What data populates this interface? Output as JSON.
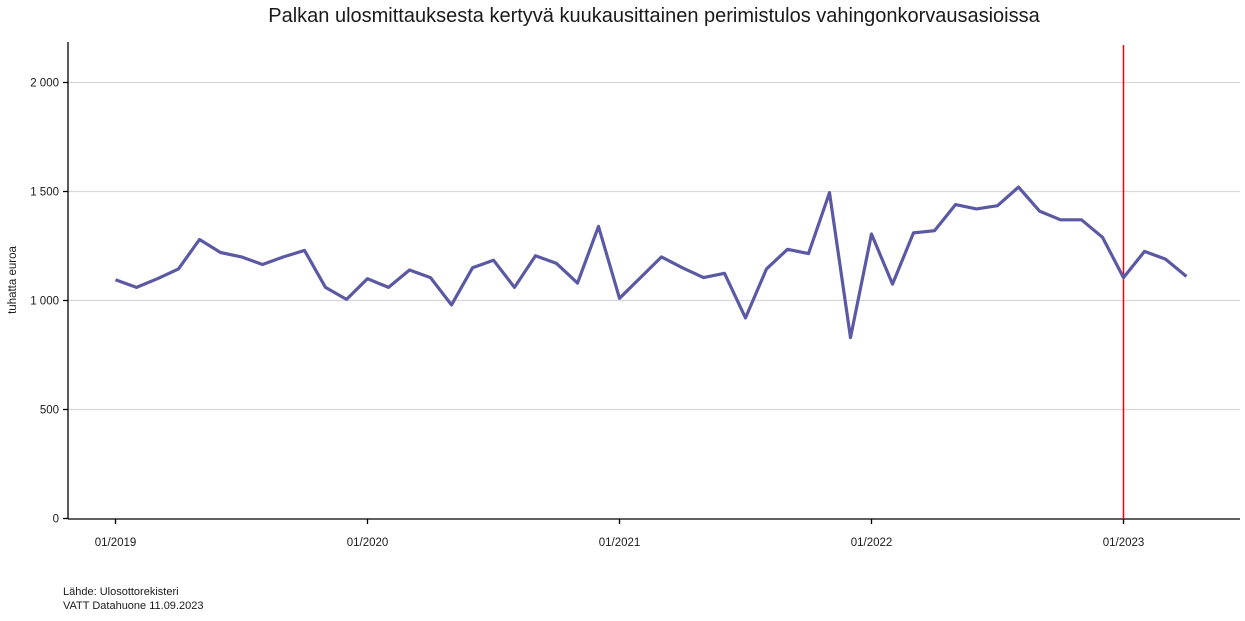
{
  "source": {
    "line1": "Lähde: Ulosottorekisteri",
    "line2": "VATT Datahuone 11.09.2023"
  },
  "chart_data": {
    "type": "line",
    "title": "Palkan ulosmittauksesta kertyvä kuukausittainen perimistulos vahingonkorvausasioissa",
    "xlabel": "",
    "ylabel": "tuhatta euroa",
    "ylim": [
      0,
      2150
    ],
    "yticks": [
      0,
      500,
      1000,
      1500,
      2000
    ],
    "ytick_labels": [
      "0",
      "500",
      "1 000",
      "1 500",
      "2 000"
    ],
    "xtick_labels": [
      "01/2019",
      "01/2020",
      "01/2021",
      "01/2022",
      "01/2023"
    ],
    "xtick_month_indices": [
      0,
      12,
      24,
      36,
      48
    ],
    "grid": "horizontal",
    "legend": "none",
    "line_color": "#5B59A4",
    "gridline_color": "#d8d8d8",
    "axis_color": "#000000",
    "vline": {
      "x_label": "01/2023",
      "month_index": 48,
      "color": "#FF0000"
    },
    "x": [
      "01/2019",
      "02/2019",
      "03/2019",
      "04/2019",
      "05/2019",
      "06/2019",
      "07/2019",
      "08/2019",
      "09/2019",
      "10/2019",
      "11/2019",
      "12/2019",
      "01/2020",
      "02/2020",
      "03/2020",
      "04/2020",
      "05/2020",
      "06/2020",
      "07/2020",
      "08/2020",
      "09/2020",
      "10/2020",
      "11/2020",
      "12/2020",
      "01/2021",
      "02/2021",
      "03/2021",
      "04/2021",
      "05/2021",
      "06/2021",
      "07/2021",
      "08/2021",
      "09/2021",
      "10/2021",
      "11/2021",
      "12/2021",
      "01/2022",
      "02/2022",
      "03/2022",
      "04/2022",
      "05/2022",
      "06/2022",
      "07/2022",
      "08/2022",
      "09/2022",
      "10/2022",
      "11/2022",
      "12/2022",
      "01/2023",
      "02/2023",
      "03/2023",
      "04/2023"
    ],
    "values": [
      1095,
      1060,
      1100,
      1145,
      1280,
      1220,
      1200,
      1165,
      1200,
      1230,
      1060,
      1005,
      1100,
      1060,
      1140,
      1105,
      980,
      1150,
      1185,
      1060,
      1205,
      1170,
      1080,
      1340,
      1010,
      1105,
      1200,
      1150,
      1105,
      1125,
      920,
      1145,
      1235,
      1215,
      1495,
      830,
      1305,
      1075,
      1310,
      1320,
      1440,
      1420,
      1435,
      1520,
      1410,
      1370,
      1370,
      1290,
      1105,
      1225,
      1190,
      1110
    ]
  }
}
